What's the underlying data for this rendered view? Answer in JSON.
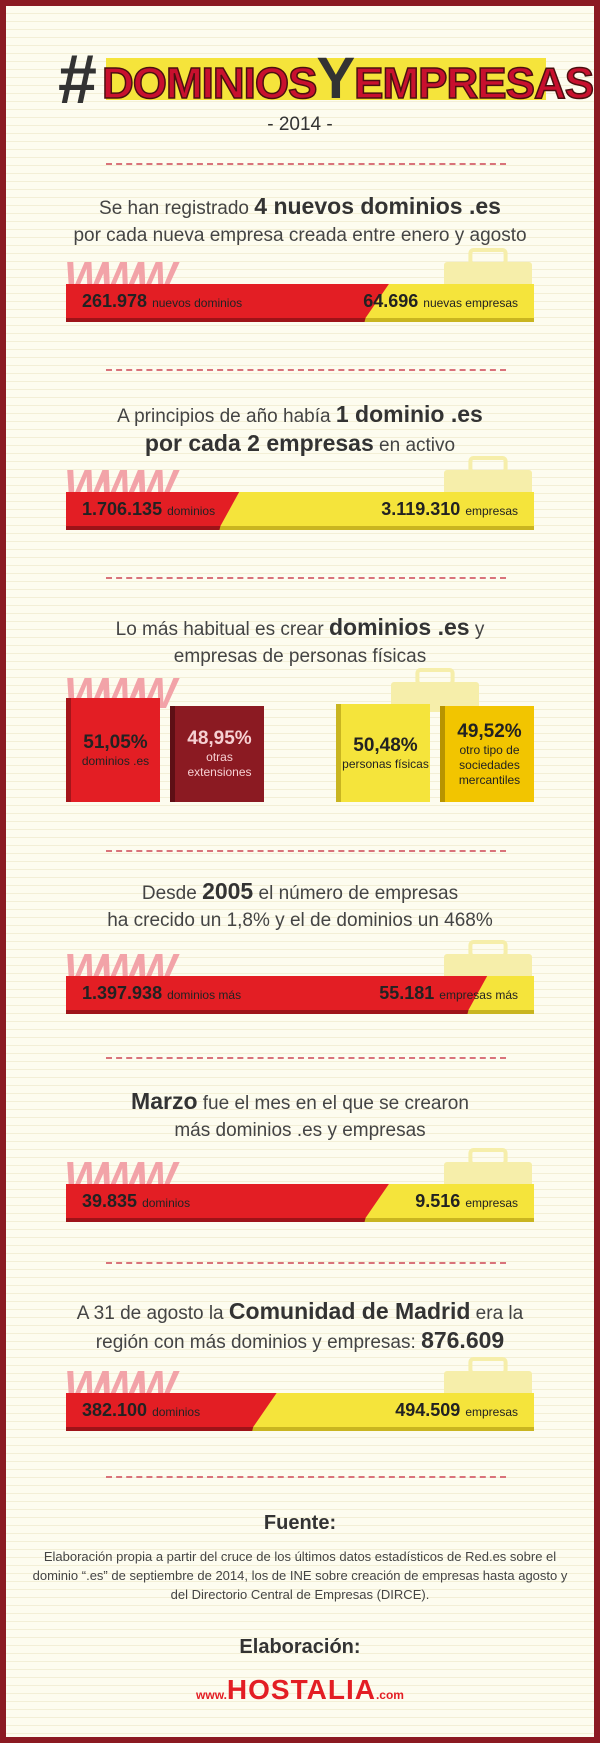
{
  "header": {
    "hash": "#",
    "title_1": "DOMINIOS",
    "title_2": "Y",
    "title_3": "EMPRESAS",
    "year": "- 2014 -"
  },
  "decoration": "WWW",
  "sections": [
    {
      "lines": [
        [
          {
            "text": "Se han registrado ",
            "bold": false
          },
          {
            "text": "4 nuevos dominios .es",
            "bold": true
          }
        ],
        [
          {
            "text": "por cada nueva empresa creada entre enero y agosto",
            "bold": false
          }
        ]
      ],
      "bar": {
        "left_value": "261.978",
        "left_label": "nuevos dominios",
        "right_value": "64.696",
        "right_label": "nuevas empresas"
      }
    },
    {
      "lines": [
        [
          {
            "text": "A principios de año había ",
            "bold": false
          },
          {
            "text": "1 dominio .es",
            "bold": true
          }
        ],
        [
          {
            "text": "por cada 2 empresas",
            "bold": true
          },
          {
            "text": " en activo",
            "bold": false
          }
        ]
      ],
      "bar": {
        "left_value": "1.706.135",
        "left_label": "dominios",
        "right_value": "3.119.310",
        "right_label": "empresas"
      }
    },
    {
      "lines": [
        [
          {
            "text": "Lo más habitual es crear ",
            "bold": false
          },
          {
            "text": "dominios .es",
            "bold": true
          },
          {
            "text": " y",
            "bold": false
          }
        ],
        [
          {
            "text": "empresas de personas físicas",
            "bold": false
          }
        ]
      ],
      "boxes": [
        {
          "value": "51,05%",
          "label": "dominios .es"
        },
        {
          "value": "48,95%",
          "label": "otras extensiones"
        },
        {
          "value": "50,48%",
          "label": "personas físicas"
        },
        {
          "value": "49,52%",
          "label": "otro tipo de sociedades mercantiles"
        }
      ]
    },
    {
      "lines": [
        [
          {
            "text": "Desde ",
            "bold": false
          },
          {
            "text": "2005",
            "bold": true
          },
          {
            "text": " el número de empresas",
            "bold": false
          }
        ],
        [
          {
            "text": "ha crecido un 1,8% y el de dominios un 468%",
            "bold": false
          }
        ]
      ],
      "bar": {
        "left_value": "1.397.938",
        "left_label": "dominios más",
        "right_value": "55.181",
        "right_label": "empresas más"
      }
    },
    {
      "lines": [
        [
          {
            "text": "Marzo",
            "bold": true
          },
          {
            "text": " fue el mes en el que se crearon",
            "bold": false
          }
        ],
        [
          {
            "text": "más dominios .es y empresas",
            "bold": false
          }
        ]
      ],
      "bar": {
        "left_value": "39.835",
        "left_label": "dominios",
        "right_value": "9.516",
        "right_label": "empresas"
      }
    },
    {
      "lines": [
        [
          {
            "text": "A 31 de agosto la ",
            "bold": false
          },
          {
            "text": "Comunidad de Madrid",
            "bold": true
          },
          {
            "text": " era la",
            "bold": false
          }
        ],
        [
          {
            "text": "región con más dominios y empresas: ",
            "bold": false
          },
          {
            "text": "876.609",
            "bold": true
          }
        ]
      ],
      "bar": {
        "left_value": "382.100",
        "left_label": "dominios",
        "right_value": "494.509",
        "right_label": "empresas"
      }
    }
  ],
  "footer": {
    "source_title": "Fuente:",
    "source_text": "Elaboración propia a partir del cruce de los últimos datos estadísticos de Red.es sobre el dominio “.es” de septiembre de 2014, los de INE sobre creación de empresas hasta agosto y del Directorio Central de Empresas (DIRCE).",
    "credit_title": "Elaboración:",
    "logo_prefix": "www.",
    "logo": "HOSTALIA",
    "logo_suffix": ".com"
  }
}
